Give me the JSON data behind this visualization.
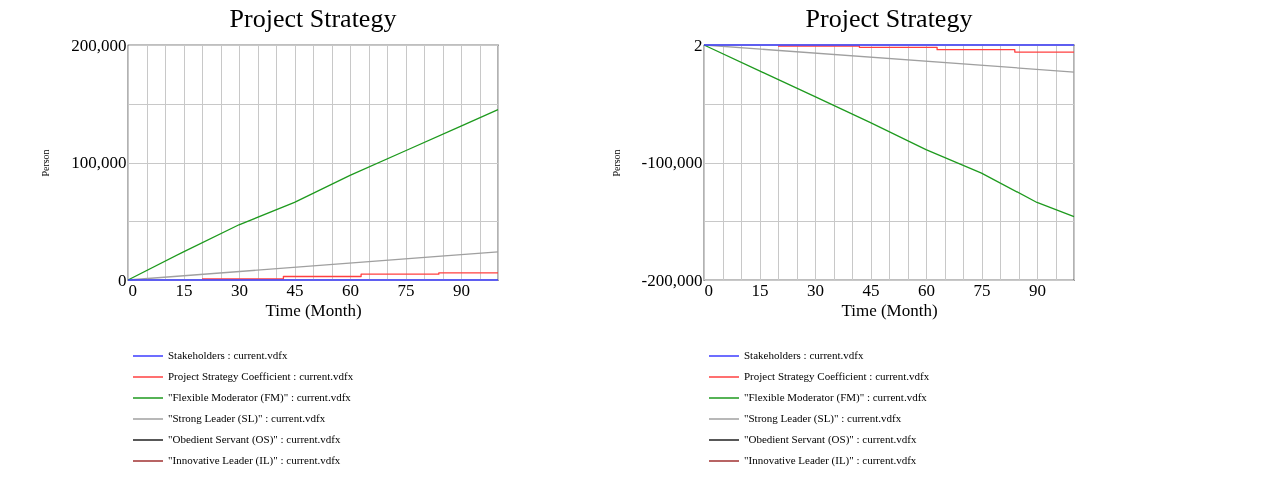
{
  "chart_data": [
    {
      "type": "line",
      "title": "Project Strategy",
      "xlabel": "Time (Month)",
      "ylabel": "Person",
      "grid": true,
      "legend": "bottom",
      "xlim": [
        0,
        100
      ],
      "ylim": [
        0,
        200000
      ],
      "xticks": [
        0,
        {
          "value": 5,
          "label": null
        },
        {
          "value": 10,
          "label": null
        },
        15,
        {
          "value": 20,
          "label": null
        },
        {
          "value": 25,
          "label": null
        },
        30,
        {
          "value": 35,
          "label": null
        },
        {
          "value": 40,
          "label": null
        },
        45,
        {
          "value": 50,
          "label": null
        },
        {
          "value": 55,
          "label": null
        },
        60,
        {
          "value": 65,
          "label": null
        },
        {
          "value": 70,
          "label": null
        },
        75,
        {
          "value": 80,
          "label": null
        },
        {
          "value": 85,
          "label": null
        },
        90,
        {
          "value": 95,
          "label": null
        },
        {
          "value": 100,
          "label": null
        }
      ],
      "yticks": [
        0,
        {
          "value": 50000,
          "label": null
        },
        {
          "value": 100000,
          "label": "100,000"
        },
        {
          "value": 150000,
          "label": null
        },
        {
          "value": 200000,
          "label": "200,000"
        }
      ],
      "series": [
        {
          "name": "Stakeholders : current.vdfx",
          "color": "#3c3cff",
          "x": [
            0,
            100
          ],
          "values": [
            0,
            0
          ]
        },
        {
          "name": "Project Strategy Coefficient : current.vdfx",
          "color": "#ff4040",
          "type": "step",
          "x": [
            20,
            42,
            63,
            84,
            100
          ],
          "values": [
            1000,
            3000,
            5000,
            6000,
            6000
          ]
        },
        {
          "name": "\"Flexible Moderator (FM)\" : current.vdfx",
          "color": "#1e9a1e",
          "x": [
            0,
            15,
            30,
            45,
            60,
            75,
            90,
            100
          ],
          "values": [
            0,
            24000,
            47000,
            66000,
            89000,
            110000,
            131000,
            145000
          ]
        },
        {
          "name": "\"Strong Leader (SL)\" : current.vdfx",
          "color": "#a0a0a0",
          "x": [
            0,
            100
          ],
          "values": [
            0,
            24000
          ]
        },
        {
          "name": "\"Obedient Servant (OS)\" : current.vdfx",
          "color": "#202020"
        },
        {
          "name": "\"Innovative Leader (IL)\" : current.vdfx",
          "color": "#a03030"
        }
      ]
    },
    {
      "type": "line",
      "title": "Project Strategy",
      "xlabel": "Time (Month)",
      "ylabel": "Person",
      "grid": true,
      "legend": "bottom",
      "xlim": [
        0,
        100
      ],
      "ylim": [
        -200000,
        2
      ],
      "xticks": [
        0,
        {
          "value": 5,
          "label": null
        },
        {
          "value": 10,
          "label": null
        },
        15,
        {
          "value": 20,
          "label": null
        },
        {
          "value": 25,
          "label": null
        },
        30,
        {
          "value": 35,
          "label": null
        },
        {
          "value": 40,
          "label": null
        },
        45,
        {
          "value": 50,
          "label": null
        },
        {
          "value": 55,
          "label": null
        },
        60,
        {
          "value": 65,
          "label": null
        },
        {
          "value": 70,
          "label": null
        },
        75,
        {
          "value": 80,
          "label": null
        },
        {
          "value": 85,
          "label": null
        },
        90,
        {
          "value": 95,
          "label": null
        },
        {
          "value": 100,
          "label": null
        }
      ],
      "yticks": [
        {
          "value": -200000,
          "label": "-200,000"
        },
        {
          "value": -150000,
          "label": null
        },
        {
          "value": -100000,
          "label": "-100,000"
        },
        {
          "value": -50000,
          "label": null
        },
        2
      ],
      "series": [
        {
          "name": "Stakeholders : current.vdfx",
          "color": "#3c3cff",
          "x": [
            0,
            100
          ],
          "values": [
            0,
            0
          ]
        },
        {
          "name": "Project Strategy Coefficient : current.vdfx",
          "color": "#ff4040",
          "type": "step",
          "x": [
            20,
            42,
            63,
            84,
            100
          ],
          "values": [
            -1000,
            -2000,
            -4000,
            -6000,
            -6000
          ]
        },
        {
          "name": "\"Flexible Moderator (FM)\" : current.vdfx",
          "color": "#1e9a1e",
          "x": [
            0,
            15,
            30,
            45,
            60,
            75,
            90,
            100
          ],
          "values": [
            0,
            -22000,
            -44000,
            -66000,
            -89000,
            -109000,
            -134000,
            -146000
          ]
        },
        {
          "name": "\"Strong Leader (SL)\" : current.vdfx",
          "color": "#a0a0a0",
          "x": [
            0,
            100
          ],
          "values": [
            0,
            -23000
          ]
        },
        {
          "name": "\"Obedient Servant (OS)\" : current.vdfx",
          "color": "#202020"
        },
        {
          "name": "\"Innovative Leader (IL)\" : current.vdfx",
          "color": "#a03030"
        }
      ]
    }
  ]
}
